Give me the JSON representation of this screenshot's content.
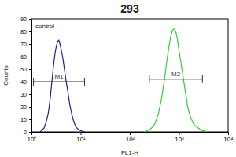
{
  "chart_data": {
    "type": "line",
    "title": "293",
    "x_label": "FL1-H",
    "y_label": "Counts",
    "log": "x",
    "legend": "upper left",
    "xlim": [
      1,
      10000
    ],
    "xticks": [
      {
        "value": 1,
        "label": "10⁰"
      },
      {
        "value": 10,
        "label": "10¹"
      },
      {
        "value": 100,
        "label": "10²"
      },
      {
        "value": 1000,
        "label": "10³"
      },
      {
        "value": 10000,
        "label": "10⁴"
      }
    ],
    "ylim": [
      0,
      90
    ],
    "yticks": [
      0,
      10,
      20,
      30,
      40,
      50,
      60,
      70,
      80,
      90
    ],
    "series": [
      {
        "name": "control",
        "color": "#1f1f8c",
        "x": [
          1.5,
          1.8,
          2,
          2.2,
          2.4,
          2.6,
          2.8,
          3,
          3.2,
          3.4,
          3.6,
          3.8,
          4,
          4.3,
          4.6,
          5,
          5.5,
          6,
          6.6,
          7.3,
          8,
          9,
          10,
          12
        ],
        "values": [
          0,
          3,
          8,
          15,
          26,
          40,
          52,
          62,
          68,
          72,
          73,
          70,
          66,
          60,
          52,
          42,
          32,
          22,
          14,
          8,
          4,
          2,
          1,
          0
        ]
      },
      {
        "color": "#33cc33",
        "x": [
          200,
          260,
          320,
          380,
          440,
          500,
          560,
          620,
          680,
          740,
          800,
          860,
          920,
          1000,
          1100,
          1200,
          1350,
          1500,
          1700,
          2000,
          2500,
          3000,
          4000
        ],
        "values": [
          0,
          2,
          6,
          14,
          26,
          40,
          55,
          67,
          76,
          81,
          82,
          80,
          75,
          65,
          55,
          45,
          32,
          20,
          12,
          6,
          3,
          1,
          0
        ]
      }
    ],
    "annotations": [
      {
        "text": "M1",
        "x": [
          1.1,
          12
        ],
        "y": 40
      },
      {
        "text": "M2",
        "x": [
          250,
          3000
        ],
        "y": 42
      }
    ]
  }
}
